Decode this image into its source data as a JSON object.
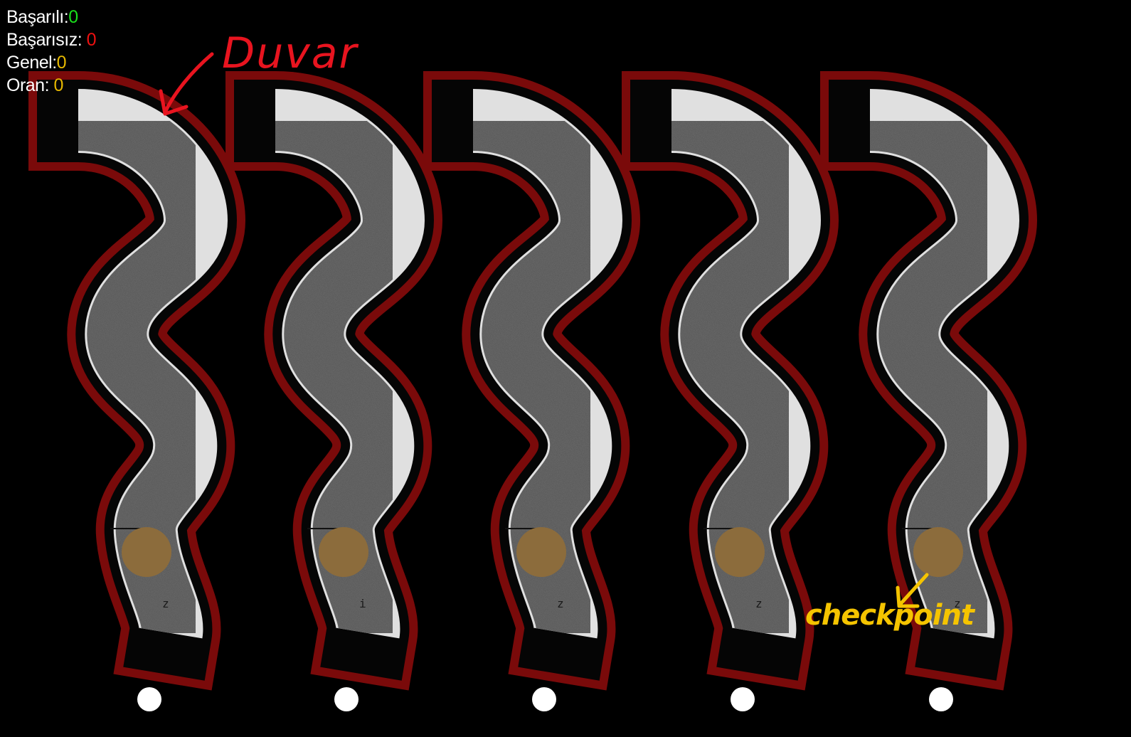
{
  "hud": {
    "success_label": "Başarılı:",
    "success_value": "0",
    "fail_label": "Başarısız:",
    "fail_value": "0",
    "total_label": "Genel:",
    "total_value": "0",
    "ratio_label": "Oran:",
    "ratio_value": "0"
  },
  "annotations": {
    "wall_label": "Duvar",
    "checkpoint_label": "checkpoint"
  },
  "tracks": [
    {
      "agent_marker": "z"
    },
    {
      "agent_marker": "i"
    },
    {
      "agent_marker": "z"
    },
    {
      "agent_marker": "z"
    },
    {
      "agent_marker": "z"
    }
  ],
  "colors": {
    "wall": "#7a0a0a",
    "road": "#4f4f4f",
    "lane_line": "#e0e0e0",
    "checkpoint": "#8c6c3c",
    "spawn_dot": "#ffffff",
    "annotation_red": "#e8141f",
    "annotation_yellow": "#f5c400"
  }
}
